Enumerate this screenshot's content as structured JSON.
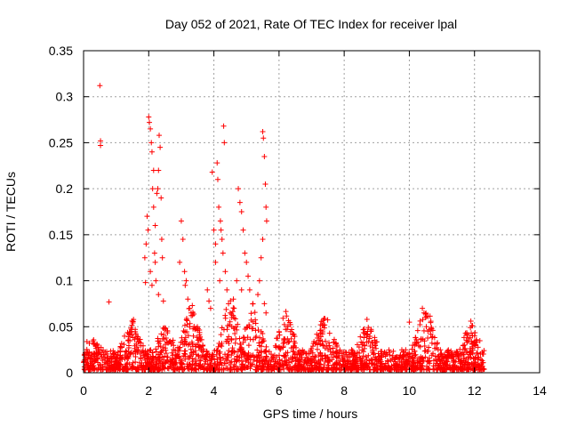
{
  "chart_data": {
    "type": "scatter",
    "title": "Day 052 of 2021, Rate Of TEC Index for receiver lpal",
    "xlabel": "GPS time / hours",
    "ylabel": "ROTI / TECUs",
    "xlim": [
      0,
      14
    ],
    "ylim": [
      0,
      0.35
    ],
    "x_ticks": [
      0,
      2,
      4,
      6,
      8,
      10,
      12,
      14
    ],
    "y_ticks": [
      0,
      0.05,
      0.1,
      0.15,
      0.2,
      0.25,
      0.3,
      0.35
    ],
    "x_tick_labels": [
      "0",
      "2",
      "4",
      "6",
      "8",
      "10",
      "12",
      "14"
    ],
    "y_tick_labels": [
      "0",
      "0.05",
      "0.1",
      "0.15",
      "0.2",
      "0.25",
      "0.3",
      "0.35"
    ],
    "grid": true,
    "marker": "+",
    "color": "#ff0000",
    "series": [
      {
        "name": "ROTI",
        "points": [
          [
            0.5,
            0.312
          ],
          [
            0.52,
            0.252
          ],
          [
            0.52,
            0.247
          ],
          [
            0.78,
            0.077
          ],
          [
            1.9,
            0.098
          ],
          [
            1.95,
            0.17
          ],
          [
            1.98,
            0.155
          ],
          [
            2.0,
            0.278
          ],
          [
            2.02,
            0.272
          ],
          [
            2.05,
            0.265
          ],
          [
            2.08,
            0.25
          ],
          [
            2.1,
            0.24
          ],
          [
            2.12,
            0.2
          ],
          [
            2.15,
            0.18
          ],
          [
            2.18,
            0.13
          ],
          [
            2.2,
            0.12
          ],
          [
            2.22,
            0.1
          ],
          [
            2.25,
            0.195
          ],
          [
            2.28,
            0.2
          ],
          [
            2.3,
            0.22
          ],
          [
            2.32,
            0.258
          ],
          [
            2.35,
            0.245
          ],
          [
            2.38,
            0.19
          ],
          [
            2.4,
            0.145
          ],
          [
            2.42,
            0.125
          ],
          [
            2.45,
            0.078
          ],
          [
            1.88,
            0.125
          ],
          [
            1.92,
            0.14
          ],
          [
            2.05,
            0.11
          ],
          [
            2.1,
            0.095
          ],
          [
            2.3,
            0.085
          ],
          [
            2.2,
            0.16
          ],
          [
            2.15,
            0.22
          ],
          [
            3.0,
            0.165
          ],
          [
            3.05,
            0.145
          ],
          [
            3.1,
            0.11
          ],
          [
            3.12,
            0.095
          ],
          [
            3.2,
            0.08
          ],
          [
            3.25,
            0.07
          ],
          [
            3.3,
            0.065
          ],
          [
            2.95,
            0.12
          ],
          [
            3.15,
            0.1
          ],
          [
            3.8,
            0.09
          ],
          [
            3.85,
            0.078
          ],
          [
            3.9,
            0.07
          ],
          [
            3.95,
            0.218
          ],
          [
            4.0,
            0.155
          ],
          [
            4.05,
            0.14
          ],
          [
            4.1,
            0.228
          ],
          [
            4.12,
            0.21
          ],
          [
            4.15,
            0.18
          ],
          [
            4.2,
            0.165
          ],
          [
            4.22,
            0.155
          ],
          [
            4.25,
            0.145
          ],
          [
            4.28,
            0.13
          ],
          [
            4.3,
            0.268
          ],
          [
            4.32,
            0.25
          ],
          [
            4.35,
            0.11
          ],
          [
            4.4,
            0.09
          ],
          [
            4.45,
            0.075
          ],
          [
            4.5,
            0.065
          ],
          [
            4.55,
            0.06
          ],
          [
            4.05,
            0.12
          ],
          [
            4.18,
            0.1
          ],
          [
            4.6,
            0.08
          ],
          [
            4.62,
            0.07
          ],
          [
            4.75,
            0.2
          ],
          [
            4.8,
            0.185
          ],
          [
            4.85,
            0.175
          ],
          [
            4.9,
            0.155
          ],
          [
            4.95,
            0.13
          ],
          [
            5.0,
            0.12
          ],
          [
            5.05,
            0.105
          ],
          [
            5.1,
            0.09
          ],
          [
            5.2,
            0.075
          ],
          [
            4.7,
            0.1
          ],
          [
            4.85,
            0.09
          ],
          [
            5.5,
            0.262
          ],
          [
            5.52,
            0.255
          ],
          [
            5.55,
            0.235
          ],
          [
            5.58,
            0.205
          ],
          [
            5.6,
            0.18
          ],
          [
            5.62,
            0.165
          ],
          [
            5.5,
            0.145
          ],
          [
            5.45,
            0.125
          ],
          [
            5.4,
            0.1
          ],
          [
            5.35,
            0.085
          ],
          [
            5.55,
            0.075
          ],
          [
            5.6,
            0.065
          ],
          [
            7.35,
            0.057
          ],
          [
            7.4,
            0.052
          ],
          [
            8.7,
            0.058
          ],
          [
            8.72,
            0.045
          ],
          [
            10.4,
            0.07
          ],
          [
            10.45,
            0.065
          ],
          [
            10.5,
            0.06
          ],
          [
            10.0,
            0.055
          ],
          [
            11.9,
            0.043
          ],
          [
            12.0,
            0.04
          ],
          [
            12.05,
            0.035
          ]
        ]
      }
    ]
  }
}
